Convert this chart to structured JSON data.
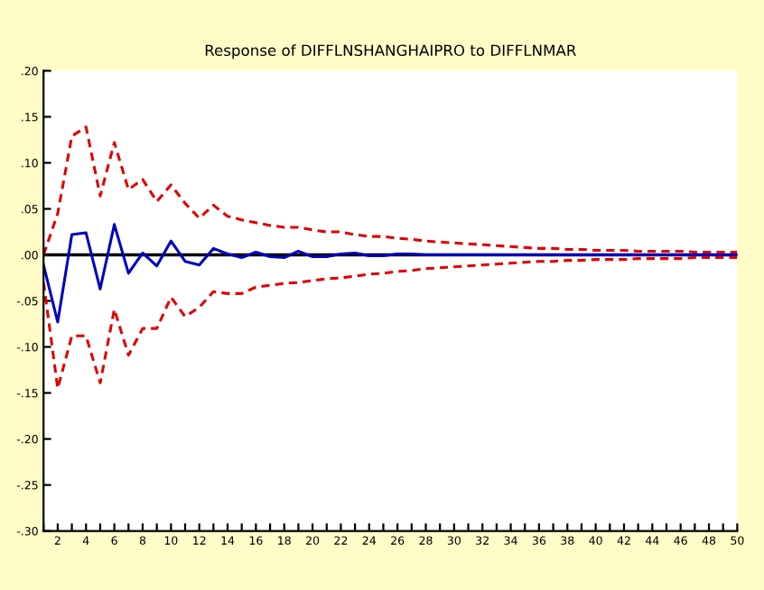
{
  "chart_data": {
    "type": "line",
    "title": "Response of DIFFLNSHANGHAIPRO to DIFFLNMAR",
    "x": [
      1,
      2,
      3,
      4,
      5,
      6,
      7,
      8,
      9,
      10,
      11,
      12,
      13,
      14,
      15,
      16,
      17,
      18,
      19,
      20,
      21,
      22,
      23,
      24,
      25,
      26,
      27,
      28,
      29,
      30,
      31,
      32,
      33,
      34,
      35,
      36,
      37,
      38,
      39,
      40,
      41,
      42,
      43,
      44,
      45,
      46,
      47,
      48,
      49,
      50
    ],
    "series": [
      {
        "color": "#0000c0",
        "line_style": "solid",
        "values": [
          -0.011,
          -0.073,
          0.022,
          0.024,
          -0.037,
          0.033,
          -0.02,
          0.002,
          -0.012,
          0.015,
          -0.007,
          -0.011,
          0.007,
          0.001,
          -0.003,
          0.003,
          -0.002,
          -0.003,
          0.004,
          -0.002,
          -0.002,
          0.001,
          0.002,
          -0.001,
          -0.001,
          0.001,
          0.001,
          0,
          0,
          0,
          0,
          0,
          0,
          0,
          0,
          0,
          0,
          0,
          0,
          0,
          0,
          0,
          0,
          0,
          0,
          0,
          0,
          0,
          0,
          0
        ]
      },
      {
        "color": "#e00000",
        "line_style": "dashed",
        "values": [
          0.0,
          0.045,
          0.129,
          0.139,
          0.064,
          0.122,
          0.071,
          0.082,
          0.058,
          0.076,
          0.056,
          0.04,
          0.054,
          0.042,
          0.038,
          0.035,
          0.032,
          0.03,
          0.03,
          0.027,
          0.025,
          0.025,
          0.022,
          0.02,
          0.02,
          0.018,
          0.017,
          0.015,
          0.014,
          0.013,
          0.012,
          0.011,
          0.01,
          0.009,
          0.008,
          0.007,
          0.007,
          0.006,
          0.006,
          0.005,
          0.005,
          0.005,
          0.004,
          0.004,
          0.004,
          0.004,
          0.003,
          0.003,
          0.003,
          0.003
        ]
      },
      {
        "color": "#e00000",
        "line_style": "dashed",
        "values": [
          -0.03,
          -0.145,
          -0.088,
          -0.088,
          -0.139,
          -0.059,
          -0.109,
          -0.08,
          -0.08,
          -0.046,
          -0.067,
          -0.057,
          -0.04,
          -0.042,
          -0.042,
          -0.035,
          -0.033,
          -0.031,
          -0.03,
          -0.028,
          -0.026,
          -0.025,
          -0.023,
          -0.021,
          -0.02,
          -0.018,
          -0.017,
          -0.015,
          -0.014,
          -0.013,
          -0.012,
          -0.011,
          -0.01,
          -0.009,
          -0.008,
          -0.007,
          -0.007,
          -0.006,
          -0.006,
          -0.005,
          -0.005,
          -0.005,
          -0.004,
          -0.004,
          -0.004,
          -0.004,
          -0.003,
          -0.003,
          -0.003,
          -0.003
        ]
      }
    ],
    "xlim": [
      1,
      50
    ],
    "xticks": [
      {
        "value": 1,
        "label": null
      },
      2,
      {
        "value": 3,
        "label": null
      },
      4,
      {
        "value": 5,
        "label": null
      },
      6,
      {
        "value": 7,
        "label": null
      },
      8,
      {
        "value": 9,
        "label": null
      },
      10,
      {
        "value": 11,
        "label": null
      },
      12,
      {
        "value": 13,
        "label": null
      },
      14,
      {
        "value": 15,
        "label": null
      },
      16,
      {
        "value": 17,
        "label": null
      },
      18,
      {
        "value": 19,
        "label": null
      },
      20,
      {
        "value": 21,
        "label": null
      },
      22,
      {
        "value": 23,
        "label": null
      },
      24,
      {
        "value": 25,
        "label": null
      },
      26,
      {
        "value": 27,
        "label": null
      },
      28,
      {
        "value": 29,
        "label": null
      },
      30,
      {
        "value": 31,
        "label": null
      },
      32,
      {
        "value": 33,
        "label": null
      },
      34,
      {
        "value": 35,
        "label": null
      },
      36,
      {
        "value": 37,
        "label": null
      },
      38,
      {
        "value": 39,
        "label": null
      },
      40,
      {
        "value": 41,
        "label": null
      },
      42,
      {
        "value": 43,
        "label": null
      },
      44,
      {
        "value": 45,
        "label": null
      },
      46,
      {
        "value": 47,
        "label": null
      },
      48,
      {
        "value": 49,
        "label": null
      },
      50
    ],
    "ylim": [
      -0.3,
      0.2
    ],
    "yticks": [
      {
        "value": -0.3,
        "label": "-.30"
      },
      {
        "value": -0.25,
        "label": "-.25"
      },
      {
        "value": -0.2,
        "label": "-.20"
      },
      {
        "value": -0.15,
        "label": "-.15"
      },
      {
        "value": -0.1,
        "label": "-.10"
      },
      {
        "value": -0.05,
        "label": "-.05"
      },
      {
        "value": 0.0,
        "label": ".00"
      },
      {
        "value": 0.05,
        "label": ".05"
      },
      {
        "value": 0.1,
        "label": ".10"
      },
      {
        "value": 0.15,
        "label": ".15"
      },
      {
        "value": 0.2,
        "label": ".20"
      }
    ],
    "ref_lines": [
      {
        "axis": "y",
        "value": 0,
        "color": "#000000",
        "line_style": "solid"
      }
    ],
    "grid": false,
    "legend": false,
    "marker": "none"
  }
}
